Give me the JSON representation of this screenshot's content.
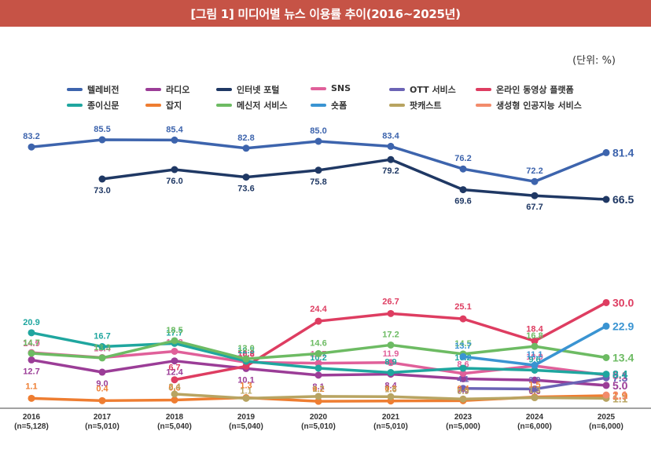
{
  "header": {
    "title": "[그림 1] 미디어별 뉴스 이용률 추이(2016~2025년)"
  },
  "unit_label": "(단위: %)",
  "chart_data": {
    "type": "line",
    "title": "[그림 1] 미디어별 뉴스 이용률 추이(2016~2025년)",
    "unit": "%",
    "xlabel": "",
    "ylabel": "",
    "ylim": [
      0,
      90
    ],
    "grid": false,
    "legend_position": "top",
    "categories": [
      "2016",
      "2017",
      "2018",
      "2019",
      "2020",
      "2021",
      "2023",
      "2024",
      "2025"
    ],
    "category_samples": [
      "(n=5,128)",
      "(n=5,010)",
      "(n=5,040)",
      "(n=5,040)",
      "(n=5,010)",
      "(n=5,010)",
      "(n=5,000)",
      "(n=6,000)",
      "(n=6,000)"
    ],
    "series": [
      {
        "name": "텔레비전",
        "color": "#3d64ad",
        "values": [
          83.2,
          85.5,
          85.4,
          82.8,
          85.0,
          83.4,
          76.2,
          72.2,
          81.4
        ]
      },
      {
        "name": "라디오",
        "color": "#9b3d97",
        "values": [
          12.7,
          9.0,
          12.4,
          10.1,
          8.1,
          8.4,
          7.0,
          6.6,
          5.0
        ]
      },
      {
        "name": "인터넷 포털",
        "color": "#1f3864",
        "values": [
          null,
          73.0,
          76.0,
          73.6,
          75.8,
          79.2,
          69.6,
          67.7,
          66.5
        ]
      },
      {
        "name": "SNS",
        "color": "#e0609a",
        "values": [
          14.9,
          13.4,
          15.3,
          12.0,
          11.7,
          11.9,
          8.6,
          10.9,
          8.1
        ]
      },
      {
        "name": "OTT 서비스",
        "color": "#6b63b5",
        "values": [
          null,
          null,
          null,
          null,
          null,
          null,
          4.1,
          3.9,
          7.3
        ]
      },
      {
        "name": "온라인 동영상 플랫폼",
        "color": "#de3d61",
        "values": [
          null,
          null,
          6.7,
          10.8,
          24.4,
          26.7,
          25.1,
          18.4,
          30.0
        ]
      },
      {
        "name": "종이신문",
        "color": "#1fa69f",
        "values": [
          20.9,
          16.7,
          17.7,
          12.3,
          10.2,
          8.9,
          10.2,
          9.6,
          8.4
        ]
      },
      {
        "name": "잡지",
        "color": "#ee7d31",
        "values": [
          1.1,
          0.4,
          0.6,
          1.3,
          0.2,
          0.3,
          0.4,
          1.5,
          1.9
        ]
      },
      {
        "name": "메신저 서비스",
        "color": "#6dbb63",
        "values": [
          14.7,
          13.3,
          18.5,
          13.0,
          14.6,
          17.2,
          14.5,
          16.8,
          13.4
        ]
      },
      {
        "name": "숏폼",
        "color": "#3a94d2",
        "values": [
          null,
          null,
          null,
          null,
          null,
          null,
          13.7,
          11.1,
          22.9
        ]
      },
      {
        "name": "팟캐스트",
        "color": "#b8a461",
        "values": [
          null,
          null,
          2.4,
          1.1,
          1.7,
          1.6,
          0.9,
          1.3,
          1.1
        ]
      },
      {
        "name": "생성형 인공지능 서비스",
        "color": "#f28b6b",
        "values": [
          null,
          null,
          null,
          null,
          null,
          null,
          null,
          null,
          2.1
        ]
      }
    ]
  }
}
